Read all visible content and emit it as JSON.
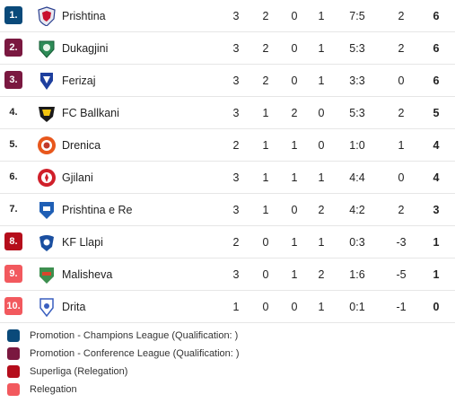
{
  "colors": {
    "champions": "#0a4a7a",
    "conference": "#7a1840",
    "superliga": "#b50d1b",
    "relegation": "#f2595e"
  },
  "standings": [
    {
      "rank": "1.",
      "zone": "champions",
      "team": "Prishtina",
      "logo": "prishtina-logo-icon",
      "p": "3",
      "w": "2",
      "d": "0",
      "l": "1",
      "goals": "7:5",
      "gd": "2",
      "pts": "6"
    },
    {
      "rank": "2.",
      "zone": "conference",
      "team": "Dukagjini",
      "logo": "dukagjini-logo-icon",
      "p": "3",
      "w": "2",
      "d": "0",
      "l": "1",
      "goals": "5:3",
      "gd": "2",
      "pts": "6"
    },
    {
      "rank": "3.",
      "zone": "conference",
      "team": "Ferizaj",
      "logo": "ferizaj-logo-icon",
      "p": "3",
      "w": "2",
      "d": "0",
      "l": "1",
      "goals": "3:3",
      "gd": "0",
      "pts": "6"
    },
    {
      "rank": "4.",
      "zone": "",
      "team": "FC Ballkani",
      "logo": "ballkani-logo-icon",
      "p": "3",
      "w": "1",
      "d": "2",
      "l": "0",
      "goals": "5:3",
      "gd": "2",
      "pts": "5"
    },
    {
      "rank": "5.",
      "zone": "",
      "team": "Drenica",
      "logo": "drenica-logo-icon",
      "p": "2",
      "w": "1",
      "d": "1",
      "l": "0",
      "goals": "1:0",
      "gd": "1",
      "pts": "4"
    },
    {
      "rank": "6.",
      "zone": "",
      "team": "Gjilani",
      "logo": "gjilani-logo-icon",
      "p": "3",
      "w": "1",
      "d": "1",
      "l": "1",
      "goals": "4:4",
      "gd": "0",
      "pts": "4"
    },
    {
      "rank": "7.",
      "zone": "",
      "team": "Prishtina e Re",
      "logo": "prishtina-e-re-logo-icon",
      "p": "3",
      "w": "1",
      "d": "0",
      "l": "2",
      "goals": "4:2",
      "gd": "2",
      "pts": "3"
    },
    {
      "rank": "8.",
      "zone": "superliga",
      "team": "KF Llapi",
      "logo": "llapi-logo-icon",
      "p": "2",
      "w": "0",
      "d": "1",
      "l": "1",
      "goals": "0:3",
      "gd": "-3",
      "pts": "1"
    },
    {
      "rank": "9.",
      "zone": "relegation",
      "team": "Malisheva",
      "logo": "malisheva-logo-icon",
      "p": "3",
      "w": "0",
      "d": "1",
      "l": "2",
      "goals": "1:6",
      "gd": "-5",
      "pts": "1"
    },
    {
      "rank": "10.",
      "zone": "relegation",
      "team": "Drita",
      "logo": "drita-logo-icon",
      "p": "1",
      "w": "0",
      "d": "0",
      "l": "1",
      "goals": "0:1",
      "gd": "-1",
      "pts": "0"
    }
  ],
  "legend": [
    {
      "zone": "champions",
      "label": "Promotion - Champions League (Qualification: )"
    },
    {
      "zone": "conference",
      "label": "Promotion - Conference League (Qualification: )"
    },
    {
      "zone": "superliga",
      "label": "Superliga (Relegation)"
    },
    {
      "zone": "relegation",
      "label": "Relegation"
    }
  ]
}
